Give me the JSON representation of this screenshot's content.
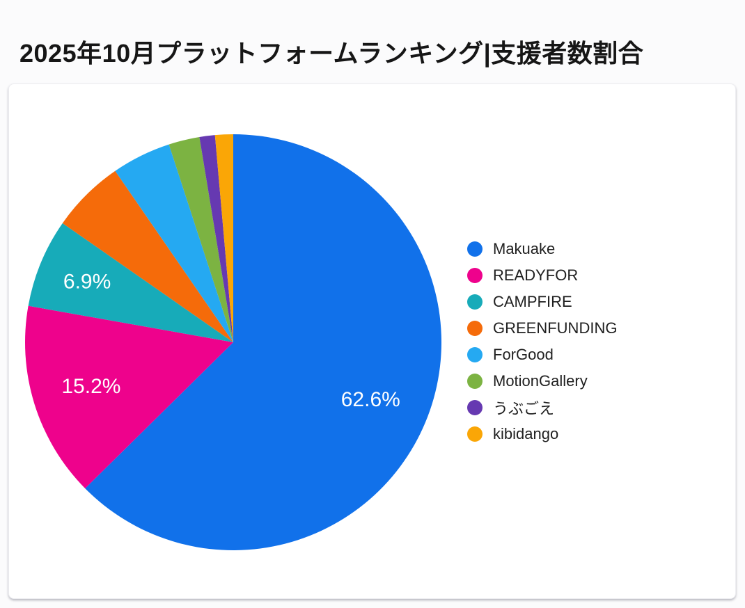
{
  "page": {
    "title": "2025年10月プラットフォームランキング|支援者数割合"
  },
  "chart_data": {
    "type": "pie",
    "title": "2025年10月プラットフォームランキング|支援者数割合",
    "unit": "%",
    "legend_position": "right",
    "start_angle_deg": 0,
    "direction": "clockwise",
    "series": [
      {
        "name": "Makuake",
        "value": 62.6,
        "label": "62.6%",
        "color": "#1171EA"
      },
      {
        "name": "READYFOR",
        "value": 15.2,
        "label": "15.2%",
        "color": "#EE028C"
      },
      {
        "name": "CAMPFIRE",
        "value": 6.9,
        "label": "6.9%",
        "color": "#17ABB9"
      },
      {
        "name": "GREENFUNDING",
        "value": 5.7,
        "label": "",
        "color": "#F56B0A"
      },
      {
        "name": "ForGood",
        "value": 4.6,
        "label": "",
        "color": "#25A9F2"
      },
      {
        "name": "MotionGallery",
        "value": 2.4,
        "label": "",
        "color": "#7CB342"
      },
      {
        "name": "うぶごえ",
        "value": 1.2,
        "label": "",
        "color": "#6639B1"
      },
      {
        "name": "kibidango",
        "value": 1.4,
        "label": "",
        "color": "#FAA606"
      }
    ]
  }
}
